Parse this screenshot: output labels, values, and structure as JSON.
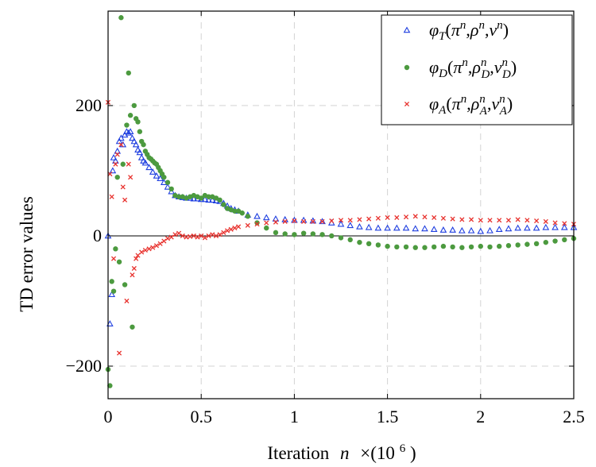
{
  "chart_data": {
    "type": "scatter",
    "title": "",
    "xlabel": "Iteration",
    "xlabel_var": "n",
    "xlabel_scale": "×(10",
    "xlabel_exp": "6",
    "xlabel_close": ")",
    "ylabel": "TD error values",
    "xlim": [
      0,
      2.5
    ],
    "ylim": [
      -250,
      345
    ],
    "x_ticks": [
      0,
      0.5,
      1,
      1.5,
      2,
      2.5
    ],
    "x_tick_labels": [
      "0",
      "0.5",
      "1",
      "1.5",
      "2",
      "2.5"
    ],
    "y_ticks": [
      -200,
      0,
      200
    ],
    "y_tick_labels": [
      "−200",
      "0",
      "200"
    ],
    "grid": true,
    "legend_position": "top-right",
    "zero_line": true,
    "series": [
      {
        "name": "phi_T(pi^n, rho^n, v^n)",
        "label": {
          "fn": "φ",
          "fnsub": "T",
          "args": [
            [
              "π",
              "n",
              ""
            ],
            [
              "ρ",
              "n",
              ""
            ],
            [
              "v",
              "n",
              ""
            ]
          ]
        },
        "color": "#1f3fe0",
        "marker": "triangle",
        "points": [
          [
            0.0,
            0
          ],
          [
            0.01,
            -135
          ],
          [
            0.02,
            -90
          ],
          [
            0.025,
            100
          ],
          [
            0.03,
            120
          ],
          [
            0.04,
            115
          ],
          [
            0.05,
            130
          ],
          [
            0.06,
            145
          ],
          [
            0.07,
            150
          ],
          [
            0.08,
            140
          ],
          [
            0.09,
            155
          ],
          [
            0.1,
            160
          ],
          [
            0.11,
            158
          ],
          [
            0.12,
            160
          ],
          [
            0.13,
            150
          ],
          [
            0.14,
            145
          ],
          [
            0.15,
            140
          ],
          [
            0.16,
            132
          ],
          [
            0.17,
            128
          ],
          [
            0.18,
            120
          ],
          [
            0.19,
            115
          ],
          [
            0.2,
            112
          ],
          [
            0.22,
            105
          ],
          [
            0.24,
            98
          ],
          [
            0.26,
            92
          ],
          [
            0.28,
            88
          ],
          [
            0.3,
            82
          ],
          [
            0.32,
            75
          ],
          [
            0.34,
            68
          ],
          [
            0.36,
            62
          ],
          [
            0.38,
            60
          ],
          [
            0.4,
            59
          ],
          [
            0.42,
            58
          ],
          [
            0.44,
            58
          ],
          [
            0.46,
            57
          ],
          [
            0.48,
            57
          ],
          [
            0.5,
            56
          ],
          [
            0.52,
            56
          ],
          [
            0.54,
            55
          ],
          [
            0.56,
            55
          ],
          [
            0.58,
            54
          ],
          [
            0.6,
            53
          ],
          [
            0.62,
            50
          ],
          [
            0.64,
            46
          ],
          [
            0.66,
            42
          ],
          [
            0.68,
            40
          ],
          [
            0.7,
            38
          ],
          [
            0.75,
            32
          ],
          [
            0.8,
            30
          ],
          [
            0.85,
            28
          ],
          [
            0.9,
            26
          ],
          [
            0.95,
            25
          ],
          [
            1.0,
            24
          ],
          [
            1.05,
            24
          ],
          [
            1.1,
            23
          ],
          [
            1.15,
            22
          ],
          [
            1.2,
            20
          ],
          [
            1.25,
            18
          ],
          [
            1.3,
            16
          ],
          [
            1.35,
            14
          ],
          [
            1.4,
            13
          ],
          [
            1.45,
            12
          ],
          [
            1.5,
            12
          ],
          [
            1.55,
            12
          ],
          [
            1.6,
            12
          ],
          [
            1.65,
            11
          ],
          [
            1.7,
            11
          ],
          [
            1.75,
            10
          ],
          [
            1.8,
            9
          ],
          [
            1.85,
            9
          ],
          [
            1.9,
            8
          ],
          [
            1.95,
            8
          ],
          [
            2.0,
            7
          ],
          [
            2.05,
            8
          ],
          [
            2.1,
            10
          ],
          [
            2.15,
            11
          ],
          [
            2.2,
            12
          ],
          [
            2.25,
            12
          ],
          [
            2.3,
            12
          ],
          [
            2.35,
            13
          ],
          [
            2.4,
            13
          ],
          [
            2.45,
            13
          ],
          [
            2.5,
            13
          ]
        ]
      },
      {
        "name": "phi_D(pi^n, rho_D^n, v_D^n)",
        "label": {
          "fn": "φ",
          "fnsub": "D",
          "args": [
            [
              "π",
              "n",
              ""
            ],
            [
              "ρ",
              "n",
              "D"
            ],
            [
              "v",
              "n",
              "D"
            ]
          ]
        },
        "color": "#4c9a3f",
        "marker": "circle",
        "points": [
          [
            0.0,
            -205
          ],
          [
            0.01,
            -230
          ],
          [
            0.02,
            -70
          ],
          [
            0.03,
            -85
          ],
          [
            0.04,
            -20
          ],
          [
            0.05,
            90
          ],
          [
            0.06,
            -40
          ],
          [
            0.07,
            335
          ],
          [
            0.08,
            110
          ],
          [
            0.09,
            -75
          ],
          [
            0.1,
            170
          ],
          [
            0.11,
            250
          ],
          [
            0.12,
            185
          ],
          [
            0.13,
            -140
          ],
          [
            0.14,
            200
          ],
          [
            0.15,
            180
          ],
          [
            0.16,
            175
          ],
          [
            0.17,
            160
          ],
          [
            0.18,
            145
          ],
          [
            0.19,
            140
          ],
          [
            0.2,
            130
          ],
          [
            0.21,
            125
          ],
          [
            0.22,
            120
          ],
          [
            0.23,
            118
          ],
          [
            0.24,
            115
          ],
          [
            0.25,
            112
          ],
          [
            0.26,
            110
          ],
          [
            0.27,
            105
          ],
          [
            0.28,
            100
          ],
          [
            0.29,
            95
          ],
          [
            0.3,
            90
          ],
          [
            0.32,
            82
          ],
          [
            0.34,
            72
          ],
          [
            0.36,
            62
          ],
          [
            0.38,
            60
          ],
          [
            0.4,
            60
          ],
          [
            0.42,
            58
          ],
          [
            0.44,
            60
          ],
          [
            0.46,
            62
          ],
          [
            0.48,
            60
          ],
          [
            0.5,
            58
          ],
          [
            0.52,
            62
          ],
          [
            0.54,
            60
          ],
          [
            0.56,
            60
          ],
          [
            0.58,
            58
          ],
          [
            0.6,
            55
          ],
          [
            0.62,
            48
          ],
          [
            0.64,
            42
          ],
          [
            0.66,
            40
          ],
          [
            0.68,
            38
          ],
          [
            0.7,
            38
          ],
          [
            0.72,
            35
          ],
          [
            0.75,
            30
          ],
          [
            0.8,
            20
          ],
          [
            0.85,
            12
          ],
          [
            0.9,
            5
          ],
          [
            0.95,
            3
          ],
          [
            1.0,
            2
          ],
          [
            1.05,
            4
          ],
          [
            1.1,
            3
          ],
          [
            1.15,
            2
          ],
          [
            1.2,
            0
          ],
          [
            1.25,
            -3
          ],
          [
            1.3,
            -6
          ],
          [
            1.35,
            -10
          ],
          [
            1.4,
            -12
          ],
          [
            1.45,
            -14
          ],
          [
            1.5,
            -16
          ],
          [
            1.55,
            -17
          ],
          [
            1.6,
            -17
          ],
          [
            1.65,
            -18
          ],
          [
            1.7,
            -18
          ],
          [
            1.75,
            -17
          ],
          [
            1.8,
            -16
          ],
          [
            1.85,
            -17
          ],
          [
            1.9,
            -18
          ],
          [
            1.95,
            -17
          ],
          [
            2.0,
            -16
          ],
          [
            2.05,
            -17
          ],
          [
            2.1,
            -16
          ],
          [
            2.15,
            -15
          ],
          [
            2.2,
            -14
          ],
          [
            2.25,
            -13
          ],
          [
            2.3,
            -12
          ],
          [
            2.35,
            -10
          ],
          [
            2.4,
            -8
          ],
          [
            2.45,
            -6
          ],
          [
            2.5,
            -4
          ]
        ]
      },
      {
        "name": "phi_A(pi^n, rho_A^n, v_A^n)",
        "label": {
          "fn": "φ",
          "fnsub": "A",
          "args": [
            [
              "π",
              "n",
              ""
            ],
            [
              "ρ",
              "n",
              "A"
            ],
            [
              "v",
              "n",
              "A"
            ]
          ]
        },
        "color": "#e8322e",
        "marker": "cross",
        "points": [
          [
            0.0,
            205
          ],
          [
            0.01,
            95
          ],
          [
            0.02,
            60
          ],
          [
            0.03,
            -35
          ],
          [
            0.04,
            110
          ],
          [
            0.05,
            125
          ],
          [
            0.06,
            -180
          ],
          [
            0.07,
            140
          ],
          [
            0.08,
            75
          ],
          [
            0.09,
            55
          ],
          [
            0.1,
            -100
          ],
          [
            0.11,
            110
          ],
          [
            0.12,
            90
          ],
          [
            0.13,
            -60
          ],
          [
            0.14,
            -50
          ],
          [
            0.15,
            -35
          ],
          [
            0.16,
            -30
          ],
          [
            0.18,
            -25
          ],
          [
            0.2,
            -22
          ],
          [
            0.22,
            -20
          ],
          [
            0.24,
            -18
          ],
          [
            0.26,
            -15
          ],
          [
            0.28,
            -12
          ],
          [
            0.3,
            -8
          ],
          [
            0.32,
            -4
          ],
          [
            0.34,
            -2
          ],
          [
            0.36,
            2
          ],
          [
            0.38,
            4
          ],
          [
            0.4,
            0
          ],
          [
            0.42,
            -2
          ],
          [
            0.44,
            -1
          ],
          [
            0.46,
            0
          ],
          [
            0.48,
            -2
          ],
          [
            0.5,
            0
          ],
          [
            0.52,
            -3
          ],
          [
            0.54,
            0
          ],
          [
            0.56,
            2
          ],
          [
            0.58,
            0
          ],
          [
            0.6,
            2
          ],
          [
            0.62,
            5
          ],
          [
            0.64,
            8
          ],
          [
            0.66,
            10
          ],
          [
            0.68,
            12
          ],
          [
            0.7,
            14
          ],
          [
            0.75,
            16
          ],
          [
            0.8,
            18
          ],
          [
            0.85,
            20
          ],
          [
            0.9,
            21
          ],
          [
            0.95,
            22
          ],
          [
            1.0,
            23
          ],
          [
            1.05,
            22
          ],
          [
            1.1,
            22
          ],
          [
            1.15,
            22
          ],
          [
            1.2,
            23
          ],
          [
            1.25,
            24
          ],
          [
            1.3,
            24
          ],
          [
            1.35,
            25
          ],
          [
            1.4,
            26
          ],
          [
            1.45,
            27
          ],
          [
            1.5,
            28
          ],
          [
            1.55,
            28
          ],
          [
            1.6,
            29
          ],
          [
            1.65,
            30
          ],
          [
            1.7,
            29
          ],
          [
            1.75,
            28
          ],
          [
            1.8,
            27
          ],
          [
            1.85,
            26
          ],
          [
            1.9,
            25
          ],
          [
            1.95,
            25
          ],
          [
            2.0,
            24
          ],
          [
            2.05,
            24
          ],
          [
            2.1,
            24
          ],
          [
            2.15,
            24
          ],
          [
            2.2,
            25
          ],
          [
            2.25,
            24
          ],
          [
            2.3,
            23
          ],
          [
            2.35,
            22
          ],
          [
            2.4,
            20
          ],
          [
            2.45,
            19
          ],
          [
            2.5,
            18
          ]
        ]
      }
    ]
  }
}
